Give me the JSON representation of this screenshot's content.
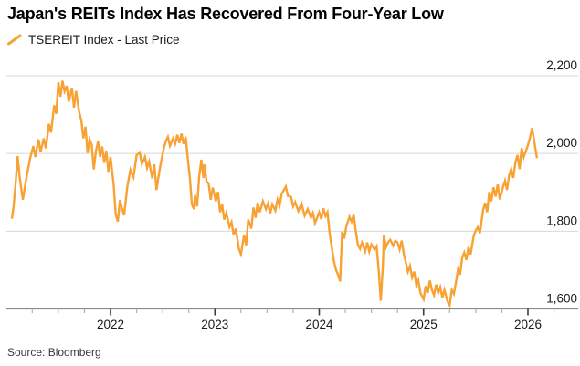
{
  "header": {
    "title": "Japan's REITs Index Has Recovered From Four-Year Low"
  },
  "legend": {
    "label": "TSEREIT Index - Last Price",
    "color": "#F8A134"
  },
  "footer": {
    "source": "Source: Bloomberg"
  },
  "chart_data": {
    "type": "line",
    "title": "Japan's REITs Index Has Recovered From Four-Year Low",
    "grid": true,
    "legend_position": "top-left",
    "x_axis": {
      "range": [
        2021.0,
        2026.25
      ],
      "tick_years": [
        2022,
        2023,
        2024,
        2025,
        2026
      ],
      "tick_labels": [
        "2022",
        "2023",
        "2024",
        "2025",
        "2026"
      ],
      "minor_tick_interval_years": 0.25
    },
    "y_axis": {
      "side": "right",
      "range": [
        1600,
        2200
      ],
      "ticks": [
        1600,
        1800,
        2000,
        2200
      ],
      "tick_labels": [
        "1,600",
        "1,800",
        "2,000",
        "2,200"
      ]
    },
    "series": [
      {
        "name": "TSEREIT Index - Last Price",
        "color": "#F8A134",
        "points": [
          [
            2021.055,
            1832
          ],
          [
            2021.07,
            1860
          ],
          [
            2021.09,
            1920
          ],
          [
            2021.11,
            1993
          ],
          [
            2021.13,
            1938
          ],
          [
            2021.16,
            1881
          ],
          [
            2021.18,
            1914
          ],
          [
            2021.2,
            1946
          ],
          [
            2021.23,
            1988
          ],
          [
            2021.26,
            2019
          ],
          [
            2021.28,
            1991
          ],
          [
            2021.31,
            2036
          ],
          [
            2021.33,
            2004
          ],
          [
            2021.36,
            2039
          ],
          [
            2021.38,
            2013
          ],
          [
            2021.41,
            2076
          ],
          [
            2021.43,
            2054
          ],
          [
            2021.46,
            2124
          ],
          [
            2021.48,
            2102
          ],
          [
            2021.5,
            2183
          ],
          [
            2021.52,
            2146
          ],
          [
            2021.54,
            2187
          ],
          [
            2021.56,
            2160
          ],
          [
            2021.58,
            2174
          ],
          [
            2021.6,
            2133
          ],
          [
            2021.63,
            2169
          ],
          [
            2021.65,
            2118
          ],
          [
            2021.67,
            2161
          ],
          [
            2021.7,
            2106
          ],
          [
            2021.72,
            2086
          ],
          [
            2021.74,
            2039
          ],
          [
            2021.76,
            2069
          ],
          [
            2021.78,
            2001
          ],
          [
            2021.8,
            2036
          ],
          [
            2021.82,
            2023
          ],
          [
            2021.84,
            1959
          ],
          [
            2021.86,
            2006
          ],
          [
            2021.88,
            2031
          ],
          [
            2021.9,
            1991
          ],
          [
            2021.92,
            2018
          ],
          [
            2021.94,
            1976
          ],
          [
            2021.96,
            2007
          ],
          [
            2021.98,
            1953
          ],
          [
            2022.0,
            1991
          ],
          [
            2022.03,
            1921
          ],
          [
            2022.05,
            1843
          ],
          [
            2022.07,
            1825
          ],
          [
            2022.09,
            1880
          ],
          [
            2022.11,
            1859
          ],
          [
            2022.13,
            1841
          ],
          [
            2022.16,
            1913
          ],
          [
            2022.19,
            1958
          ],
          [
            2022.22,
            1939
          ],
          [
            2022.25,
            1996
          ],
          [
            2022.28,
            2003
          ],
          [
            2022.3,
            1973
          ],
          [
            2022.33,
            1991
          ],
          [
            2022.35,
            1963
          ],
          [
            2022.37,
            1979
          ],
          [
            2022.4,
            1936
          ],
          [
            2022.42,
            1972
          ],
          [
            2022.44,
            1906
          ],
          [
            2022.46,
            1941
          ],
          [
            2022.48,
            1972
          ],
          [
            2022.51,
            2013
          ],
          [
            2022.53,
            2032
          ],
          [
            2022.55,
            2043
          ],
          [
            2022.57,
            2020
          ],
          [
            2022.6,
            2039
          ],
          [
            2022.62,
            2025
          ],
          [
            2022.64,
            2048
          ],
          [
            2022.66,
            2027
          ],
          [
            2022.68,
            2051
          ],
          [
            2022.7,
            2024
          ],
          [
            2022.72,
            2043
          ],
          [
            2022.74,
            1989
          ],
          [
            2022.76,
            1940
          ],
          [
            2022.78,
            1869
          ],
          [
            2022.8,
            1857
          ],
          [
            2022.81,
            1893
          ],
          [
            2022.83,
            1864
          ],
          [
            2022.85,
            1941
          ],
          [
            2022.87,
            1984
          ],
          [
            2022.89,
            1937
          ],
          [
            2022.9,
            1972
          ],
          [
            2022.92,
            1928
          ],
          [
            2022.94,
            1923
          ],
          [
            2022.96,
            1881
          ],
          [
            2022.98,
            1912
          ],
          [
            2023.01,
            1877
          ],
          [
            2023.03,
            1901
          ],
          [
            2023.05,
            1849
          ],
          [
            2023.07,
            1869
          ],
          [
            2023.09,
            1830
          ],
          [
            2023.11,
            1847
          ],
          [
            2023.14,
            1811
          ],
          [
            2023.16,
            1823
          ],
          [
            2023.18,
            1790
          ],
          [
            2023.2,
            1807
          ],
          [
            2023.23,
            1755
          ],
          [
            2023.25,
            1741
          ],
          [
            2023.28,
            1790
          ],
          [
            2023.3,
            1764
          ],
          [
            2023.32,
            1830
          ],
          [
            2023.35,
            1807
          ],
          [
            2023.37,
            1861
          ],
          [
            2023.39,
            1835
          ],
          [
            2023.41,
            1873
          ],
          [
            2023.43,
            1849
          ],
          [
            2023.46,
            1877
          ],
          [
            2023.49,
            1857
          ],
          [
            2023.51,
            1871
          ],
          [
            2023.53,
            1846
          ],
          [
            2023.55,
            1869
          ],
          [
            2023.58,
            1853
          ],
          [
            2023.6,
            1881
          ],
          [
            2023.62,
            1866
          ],
          [
            2023.64,
            1896
          ],
          [
            2023.68,
            1915
          ],
          [
            2023.7,
            1891
          ],
          [
            2023.73,
            1888
          ],
          [
            2023.75,
            1864
          ],
          [
            2023.77,
            1875
          ],
          [
            2023.8,
            1852
          ],
          [
            2023.83,
            1871
          ],
          [
            2023.86,
            1840
          ],
          [
            2023.89,
            1857
          ],
          [
            2023.92,
            1835
          ],
          [
            2023.94,
            1847
          ],
          [
            2023.96,
            1821
          ],
          [
            2024.0,
            1849
          ],
          [
            2024.02,
            1831
          ],
          [
            2024.04,
            1859
          ],
          [
            2024.06,
            1839
          ],
          [
            2024.08,
            1849
          ],
          [
            2024.1,
            1795
          ],
          [
            2024.12,
            1759
          ],
          [
            2024.14,
            1724
          ],
          [
            2024.16,
            1701
          ],
          [
            2024.18,
            1688
          ],
          [
            2024.2,
            1671
          ],
          [
            2024.22,
            1799
          ],
          [
            2024.24,
            1781
          ],
          [
            2024.26,
            1813
          ],
          [
            2024.29,
            1837
          ],
          [
            2024.31,
            1825
          ],
          [
            2024.33,
            1842
          ],
          [
            2024.35,
            1801
          ],
          [
            2024.37,
            1766
          ],
          [
            2024.39,
            1755
          ],
          [
            2024.41,
            1771
          ],
          [
            2024.44,
            1748
          ],
          [
            2024.46,
            1771
          ],
          [
            2024.48,
            1748
          ],
          [
            2024.5,
            1766
          ],
          [
            2024.53,
            1753
          ],
          [
            2024.55,
            1761
          ],
          [
            2024.57,
            1701
          ],
          [
            2024.59,
            1621
          ],
          [
            2024.61,
            1712
          ],
          [
            2024.62,
            1790
          ],
          [
            2024.64,
            1759
          ],
          [
            2024.66,
            1771
          ],
          [
            2024.68,
            1778
          ],
          [
            2024.71,
            1763
          ],
          [
            2024.73,
            1776
          ],
          [
            2024.75,
            1771
          ],
          [
            2024.77,
            1753
          ],
          [
            2024.79,
            1776
          ],
          [
            2024.81,
            1743
          ],
          [
            2024.83,
            1720
          ],
          [
            2024.85,
            1696
          ],
          [
            2024.87,
            1711
          ],
          [
            2024.89,
            1681
          ],
          [
            2024.91,
            1696
          ],
          [
            2024.93,
            1661
          ],
          [
            2024.95,
            1673
          ],
          [
            2024.97,
            1641
          ],
          [
            2025.0,
            1625
          ],
          [
            2025.02,
            1659
          ],
          [
            2025.04,
            1641
          ],
          [
            2025.06,
            1673
          ],
          [
            2025.08,
            1649
          ],
          [
            2025.1,
            1636
          ],
          [
            2025.12,
            1663
          ],
          [
            2025.14,
            1641
          ],
          [
            2025.16,
            1656
          ],
          [
            2025.18,
            1629
          ],
          [
            2025.2,
            1649
          ],
          [
            2025.23,
            1619
          ],
          [
            2025.25,
            1610
          ],
          [
            2025.27,
            1649
          ],
          [
            2025.29,
            1639
          ],
          [
            2025.31,
            1668
          ],
          [
            2025.33,
            1702
          ],
          [
            2025.35,
            1688
          ],
          [
            2025.37,
            1731
          ],
          [
            2025.39,
            1745
          ],
          [
            2025.41,
            1726
          ],
          [
            2025.43,
            1759
          ],
          [
            2025.45,
            1740
          ],
          [
            2025.48,
            1788
          ],
          [
            2025.5,
            1802
          ],
          [
            2025.52,
            1811
          ],
          [
            2025.54,
            1795
          ],
          [
            2025.57,
            1854
          ],
          [
            2025.59,
            1873
          ],
          [
            2025.61,
            1849
          ],
          [
            2025.63,
            1901
          ],
          [
            2025.65,
            1877
          ],
          [
            2025.67,
            1913
          ],
          [
            2025.69,
            1889
          ],
          [
            2025.71,
            1920
          ],
          [
            2025.73,
            1882
          ],
          [
            2025.76,
            1913
          ],
          [
            2025.78,
            1930
          ],
          [
            2025.8,
            1906
          ],
          [
            2025.82,
            1944
          ],
          [
            2025.84,
            1960
          ],
          [
            2025.86,
            1937
          ],
          [
            2025.88,
            1977
          ],
          [
            2025.9,
            1996
          ],
          [
            2025.92,
            1960
          ],
          [
            2025.94,
            2014
          ],
          [
            2025.96,
            1991
          ],
          [
            2026.0,
            2021
          ],
          [
            2026.02,
            2041
          ],
          [
            2026.04,
            2066
          ],
          [
            2026.06,
            2031
          ],
          [
            2026.087,
            1988
          ]
        ]
      }
    ]
  }
}
